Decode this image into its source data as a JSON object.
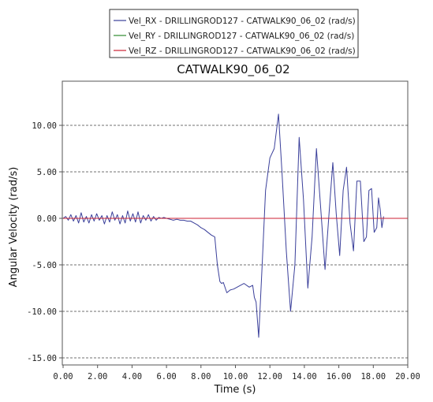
{
  "chart_data": {
    "type": "line",
    "title": "CATWALK90_06_02",
    "xlabel": "Time (s)",
    "ylabel": "Angular Velocity (rad/s)",
    "xlim": [
      0,
      20
    ],
    "ylim": [
      -15.5,
      12.5
    ],
    "x_ticks": [
      0,
      2,
      4,
      6,
      8,
      10,
      12,
      14,
      16,
      18,
      20
    ],
    "x_tick_labels": [
      "0.00",
      "2.00",
      "4.00",
      "6.00",
      "8.00",
      "10.00",
      "12.00",
      "14.00",
      "16.00",
      "18.00",
      "20.00"
    ],
    "y_ticks": [
      10,
      5,
      0,
      -5,
      -10,
      -15
    ],
    "y_tick_labels": [
      "10.00",
      "5.00",
      "0.00",
      "-5.00",
      "-10.00",
      "-15.00"
    ],
    "grid": "horizontal dashed",
    "legend_position": "top",
    "series": [
      {
        "name": "Vel_RX - DRILLINGROD127 - CATWALK90_06_02 (rad/s)",
        "color": "#3a3f9a",
        "x": [
          0.0,
          0.15,
          0.3,
          0.45,
          0.6,
          0.75,
          0.9,
          1.05,
          1.2,
          1.35,
          1.5,
          1.65,
          1.8,
          1.95,
          2.1,
          2.25,
          2.4,
          2.55,
          2.7,
          2.85,
          3.0,
          3.15,
          3.3,
          3.45,
          3.6,
          3.75,
          3.9,
          4.05,
          4.2,
          4.35,
          4.5,
          4.65,
          4.8,
          4.95,
          5.1,
          5.25,
          5.4,
          5.55,
          5.7,
          5.85,
          6.0,
          6.2,
          6.4,
          6.6,
          6.8,
          7.0,
          7.2,
          7.4,
          7.6,
          7.8,
          8.0,
          8.2,
          8.4,
          8.6,
          8.8,
          8.95,
          9.1,
          9.2,
          9.3,
          9.5,
          9.7,
          9.9,
          10.2,
          10.5,
          10.8,
          11.0,
          11.1,
          11.2,
          11.35,
          11.55,
          11.75,
          12.0,
          12.25,
          12.5,
          12.7,
          12.95,
          13.2,
          13.45,
          13.7,
          13.95,
          14.2,
          14.45,
          14.7,
          14.95,
          15.2,
          15.45,
          15.65,
          15.85,
          16.05,
          16.25,
          16.45,
          16.65,
          16.85,
          17.05,
          17.25,
          17.45,
          17.6,
          17.75,
          17.9,
          18.05,
          18.2,
          18.3,
          18.4,
          18.5,
          18.6
        ],
        "y": [
          0.0,
          0.2,
          -0.2,
          0.4,
          -0.3,
          0.3,
          -0.5,
          0.6,
          -0.4,
          0.2,
          -0.5,
          0.4,
          -0.3,
          0.5,
          -0.2,
          0.3,
          -0.6,
          0.3,
          -0.4,
          0.7,
          -0.2,
          0.4,
          -0.6,
          0.3,
          -0.5,
          0.8,
          -0.3,
          0.5,
          -0.4,
          0.7,
          -0.5,
          0.3,
          -0.2,
          0.4,
          -0.3,
          0.2,
          -0.2,
          0.1,
          0.0,
          0.1,
          0.0,
          -0.1,
          -0.2,
          -0.1,
          -0.2,
          -0.2,
          -0.3,
          -0.3,
          -0.5,
          -0.7,
          -1.0,
          -1.2,
          -1.5,
          -1.8,
          -2.0,
          -5.0,
          -6.8,
          -7.0,
          -6.9,
          -8.0,
          -7.7,
          -7.6,
          -7.3,
          -7.0,
          -7.4,
          -7.2,
          -8.5,
          -9.0,
          -12.8,
          -5.0,
          3.0,
          6.5,
          7.5,
          11.2,
          5.0,
          -3.5,
          -10.0,
          -5.0,
          8.7,
          2.0,
          -7.5,
          -2.0,
          7.5,
          1.0,
          -5.5,
          1.0,
          6.0,
          0.5,
          -4.0,
          3.0,
          5.5,
          -0.5,
          -3.5,
          4.0,
          4.0,
          -2.5,
          -2.0,
          3.0,
          3.2,
          -1.5,
          -1.0,
          2.2,
          1.0,
          -1.0,
          0.2
        ]
      },
      {
        "name": "Vel_RY - DRILLINGROD127 - CATWALK90_06_02 (rad/s)",
        "color": "#2e8b2e",
        "x": [
          0,
          20
        ],
        "y": [
          0,
          0
        ]
      },
      {
        "name": "Vel_RZ - DRILLINGROD127 - CATWALK90_06_02 (rad/s)",
        "color": "#cc2233",
        "x": [
          0,
          20
        ],
        "y": [
          0,
          0
        ]
      }
    ]
  }
}
